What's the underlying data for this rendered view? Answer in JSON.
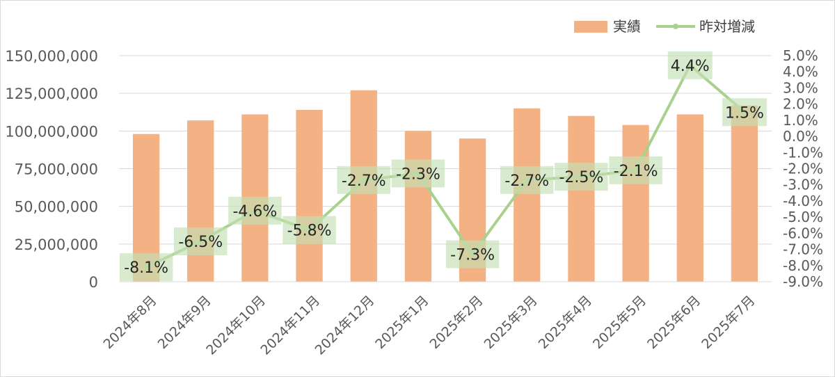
{
  "chart_data": {
    "type": "bar",
    "categories": [
      "2024年8月",
      "2024年9月",
      "2024年10月",
      "2024年11月",
      "2024年12月",
      "2025年1月",
      "2025年2月",
      "2025年3月",
      "2025年4月",
      "2025年5月",
      "2025年6月",
      "2025年7月"
    ],
    "series": [
      {
        "name": "実績",
        "type": "bar",
        "axis": "left",
        "color": "#f4b183",
        "values": [
          98000000,
          107000000,
          111000000,
          114000000,
          127000000,
          100000000,
          95000000,
          115000000,
          110000000,
          104000000,
          111000000,
          117000000
        ]
      },
      {
        "name": "昨対増減",
        "type": "line",
        "axis": "right",
        "color": "#a9d18e",
        "values": [
          -8.1,
          -6.5,
          -4.6,
          -5.8,
          -2.7,
          -2.3,
          -7.3,
          -2.7,
          -2.5,
          -2.1,
          4.4,
          1.5
        ],
        "labels": [
          "-8.1%",
          "-6.5%",
          "-4.6%",
          "-5.8%",
          "-2.7%",
          "-2.3%",
          "-7.3%",
          "-2.7%",
          "-2.5%",
          "-2.1%",
          "4.4%",
          "1.5%"
        ]
      }
    ],
    "y_left": {
      "ylim": [
        0,
        150000000
      ],
      "ticks": [
        "0",
        "25,000,000",
        "50,000,000",
        "75,000,000",
        "100,000,000",
        "125,000,000",
        "150,000,000"
      ]
    },
    "y_right": {
      "ylim": [
        -9.0,
        5.0
      ],
      "ticks": [
        "-9.0%",
        "-8.0%",
        "-7.0%",
        "-6.0%",
        "-5.0%",
        "-4.0%",
        "-3.0%",
        "-2.0%",
        "-1.0%",
        "0.0%",
        "1.0%",
        "2.0%",
        "3.0%",
        "4.0%",
        "5.0%"
      ]
    },
    "grid": true,
    "legend": "top-right",
    "data_label_bg": "#c5e0b4"
  }
}
